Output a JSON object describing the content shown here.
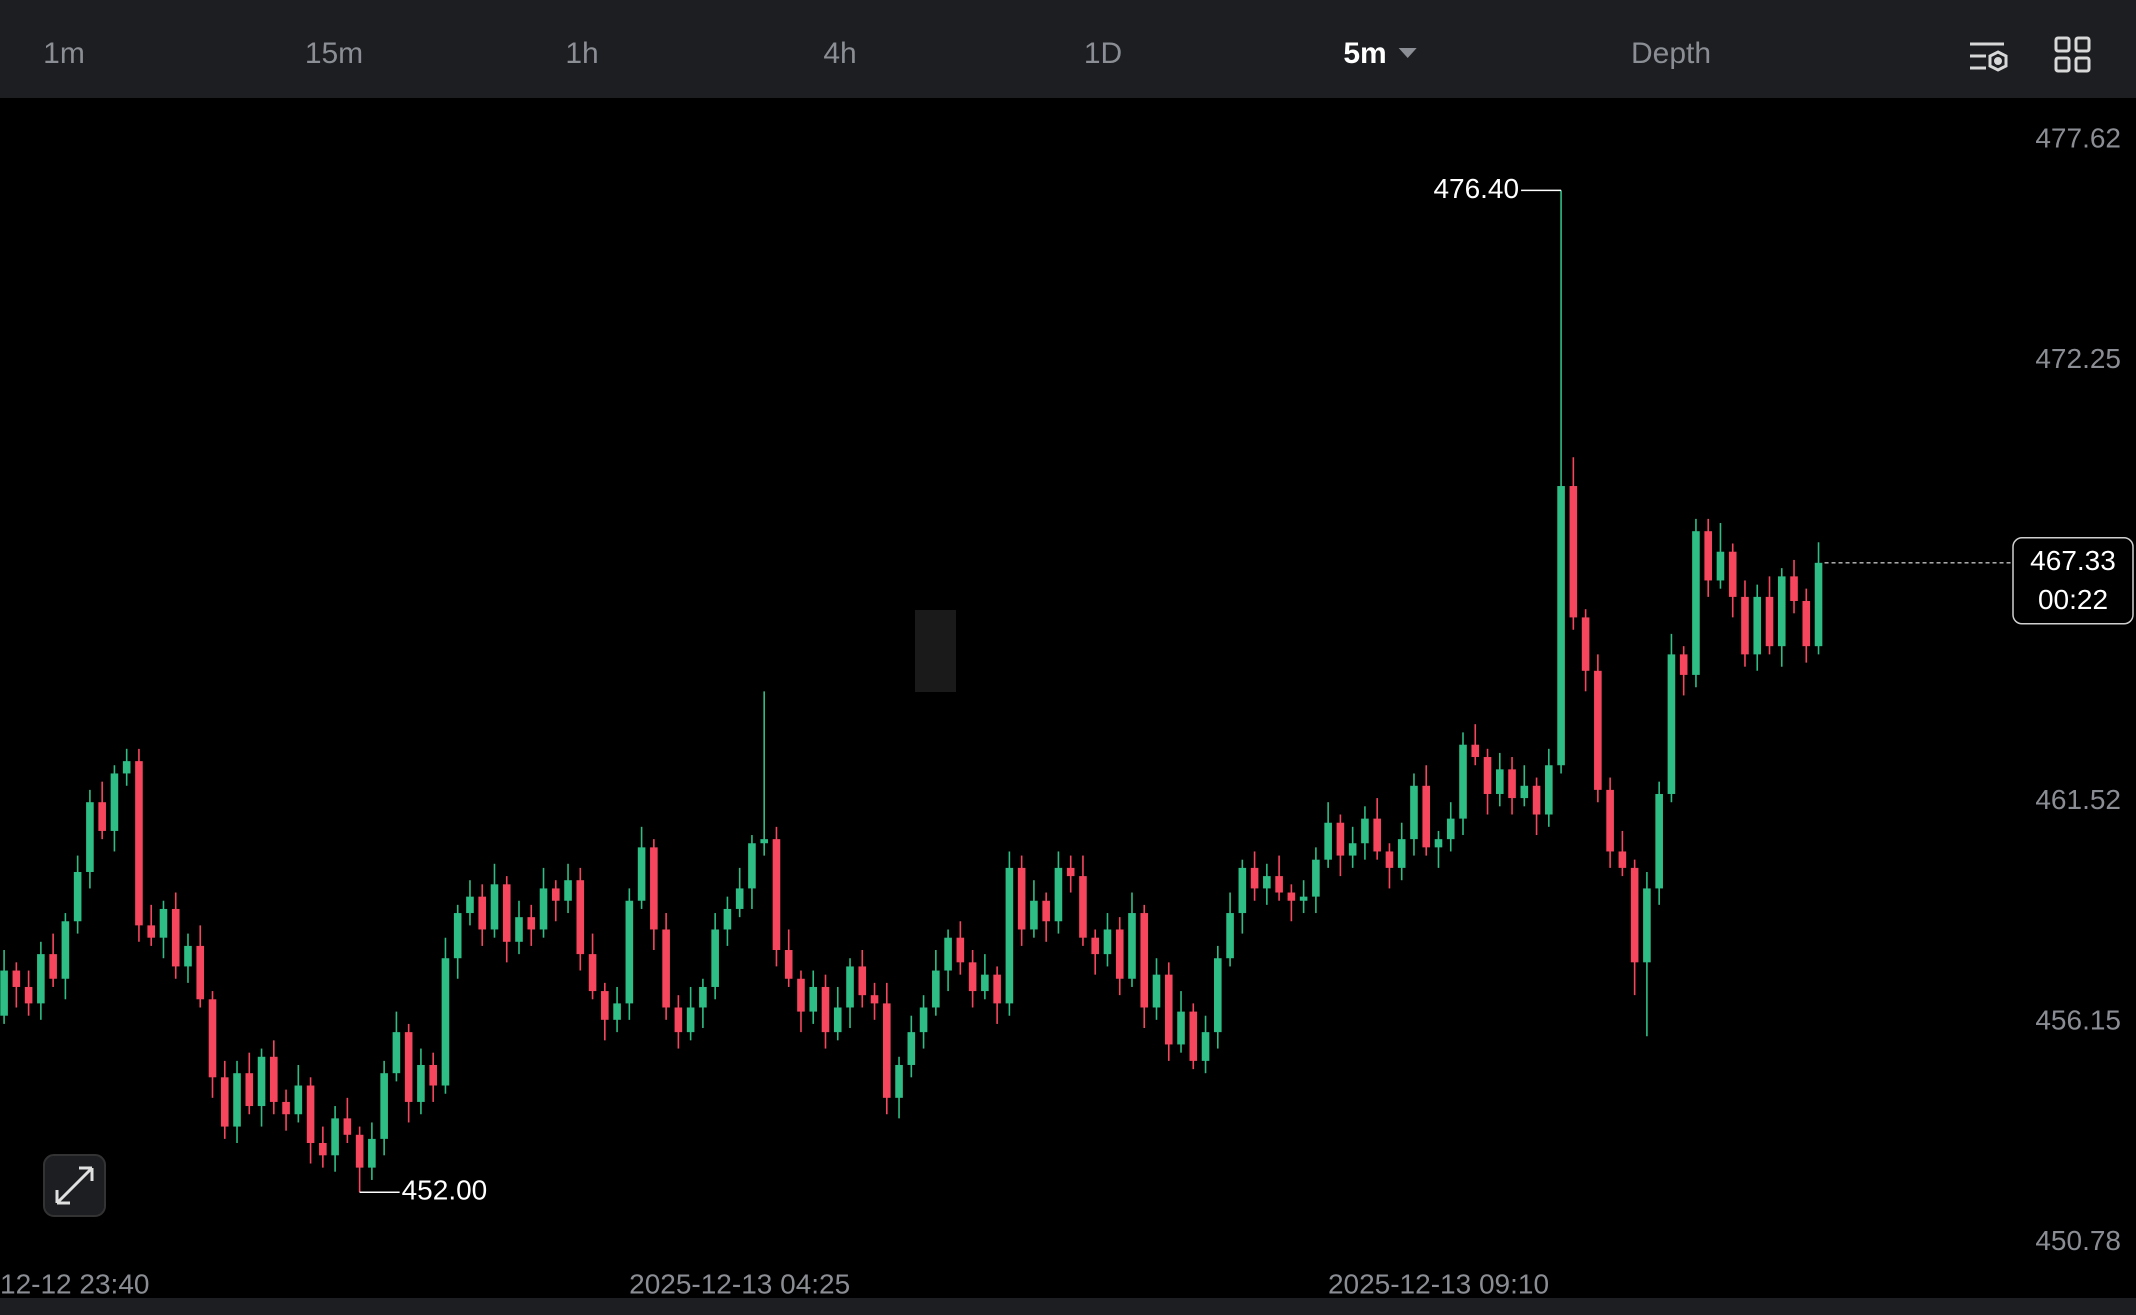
{
  "toolbar": {
    "tabs": [
      "1m",
      "15m",
      "1h",
      "4h",
      "1D",
      "5m",
      "Depth"
    ],
    "active": 5
  },
  "chart_data": {
    "type": "candlestick",
    "up_color": "#2ebd85",
    "down_color": "#f6465d",
    "ylim": [
      450.18,
      478.65
    ],
    "yticks": [
      477.62,
      472.25,
      461.52,
      456.15,
      450.78
    ],
    "categories": [
      null,
      null,
      null,
      null,
      "12-12 23:40",
      null,
      null,
      null,
      null,
      null,
      null,
      null,
      null,
      null,
      null,
      null,
      null,
      null,
      null,
      null,
      null,
      null,
      null,
      null,
      null,
      null,
      null,
      null,
      null,
      null,
      null,
      null,
      null,
      null,
      null,
      null,
      null,
      null,
      null,
      null,
      null,
      null,
      null,
      null,
      null,
      null,
      null,
      null,
      null,
      null,
      null,
      null,
      null,
      null,
      null,
      null,
      null,
      null,
      null,
      null,
      null,
      "2025-12-13 04:25",
      null,
      null,
      null,
      null,
      null,
      null,
      null,
      null,
      null,
      null,
      null,
      null,
      null,
      null,
      null,
      null,
      null,
      null,
      null,
      null,
      null,
      null,
      null,
      null,
      null,
      null,
      null,
      null,
      null,
      null,
      null,
      null,
      null,
      null,
      null,
      null,
      null,
      null,
      null,
      null,
      null,
      null,
      null,
      null,
      null,
      null,
      null,
      null,
      null,
      null,
      null,
      null,
      null,
      null,
      null,
      null,
      "2025-12-13 09:10",
      null,
      null,
      null,
      null,
      null,
      null,
      null,
      null,
      null,
      null,
      null,
      null,
      null,
      null,
      null,
      null,
      null,
      null,
      null,
      null,
      null,
      null,
      null,
      null,
      null,
      null,
      null,
      null,
      null,
      null,
      null
    ],
    "open": [
      455.6,
      456.3,
      457.4,
      457.0,
      456.6,
      457.8,
      457.2,
      458.6,
      459.8,
      461.5,
      460.8,
      462.2,
      462.5,
      458.5,
      458.2,
      458.9,
      457.5,
      458.0,
      456.7,
      454.8,
      453.6,
      454.9,
      454.1,
      455.3,
      454.2,
      453.9,
      454.6,
      453.2,
      452.9,
      453.8,
      453.4,
      452.6,
      453.3,
      454.9,
      455.9,
      454.2,
      455.1,
      454.6,
      457.7,
      458.8,
      459.2,
      458.4,
      459.5,
      458.1,
      458.7,
      458.4,
      459.4,
      459.1,
      459.6,
      457.8,
      456.9,
      456.2,
      456.6,
      459.1,
      460.4,
      458.4,
      456.5,
      455.9,
      456.5,
      457.0,
      458.4,
      458.9,
      459.4,
      460.5,
      460.6,
      457.9,
      457.2,
      456.4,
      457.0,
      455.9,
      456.5,
      457.5,
      456.8,
      456.6,
      454.3,
      455.1,
      455.9,
      456.5,
      457.4,
      458.2,
      457.6,
      456.9,
      457.3,
      456.6,
      459.9,
      458.4,
      459.1,
      458.6,
      459.9,
      459.7,
      458.2,
      457.8,
      458.4,
      457.2,
      458.8,
      456.5,
      457.3,
      455.6,
      456.4,
      455.2,
      455.9,
      457.7,
      458.8,
      459.9,
      459.4,
      459.7,
      459.3,
      459.1,
      459.2,
      460.1,
      461.0,
      460.2,
      460.5,
      461.1,
      460.3,
      459.9,
      460.6,
      461.9,
      460.4,
      460.6,
      461.1,
      462.9,
      462.6,
      461.7,
      462.3,
      461.6,
      461.9,
      461.2,
      462.4,
      469.2,
      466.0,
      464.7,
      461.8,
      460.3,
      459.9,
      457.6,
      459.4,
      461.7,
      465.1,
      464.6,
      468.1,
      466.9,
      467.6,
      466.5,
      465.1,
      466.5,
      465.3,
      467.0,
      466.4,
      465.3
    ],
    "high": [
      456.6,
      457.9,
      457.6,
      457.4,
      458.1,
      458.3,
      458.8,
      460.2,
      461.8,
      462.0,
      462.4,
      462.8,
      462.8,
      459.0,
      459.1,
      459.3,
      458.3,
      458.5,
      456.9,
      455.2,
      455.2,
      455.4,
      455.5,
      455.7,
      454.5,
      455.1,
      454.8,
      453.6,
      454.1,
      454.3,
      453.6,
      453.7,
      455.2,
      456.4,
      456.1,
      455.5,
      455.4,
      458.2,
      459.0,
      459.6,
      459.5,
      460.0,
      459.7,
      459.1,
      459.0,
      459.9,
      459.6,
      460.0,
      459.9,
      458.3,
      457.1,
      457.0,
      459.4,
      460.9,
      460.6,
      458.8,
      456.8,
      457.0,
      457.2,
      458.8,
      459.2,
      459.9,
      460.7,
      464.2,
      460.9,
      458.4,
      457.4,
      457.4,
      457.3,
      457.0,
      457.7,
      457.9,
      457.1,
      457.1,
      455.3,
      456.3,
      456.8,
      457.9,
      458.4,
      458.6,
      457.9,
      457.8,
      457.5,
      460.3,
      460.2,
      459.6,
      459.3,
      460.3,
      460.2,
      460.2,
      458.4,
      458.8,
      458.7,
      459.3,
      459.0,
      457.7,
      457.6,
      456.9,
      456.6,
      456.3,
      458.0,
      459.3,
      460.1,
      460.3,
      460.0,
      460.2,
      459.5,
      459.6,
      460.4,
      461.5,
      461.2,
      460.9,
      461.4,
      461.6,
      460.5,
      461.0,
      462.2,
      462.4,
      460.8,
      461.5,
      463.2,
      463.4,
      462.8,
      462.7,
      462.6,
      462.4,
      462.1,
      462.8,
      476.4,
      469.9,
      466.2,
      465.1,
      462.1,
      460.8,
      460.1,
      459.8,
      462.0,
      465.6,
      465.3,
      468.4,
      468.4,
      468.3,
      467.8,
      466.9,
      466.8,
      467.0,
      467.2,
      467.4,
      466.7,
      467.83
    ],
    "low": [
      455.2,
      456.1,
      456.5,
      456.3,
      456.2,
      457.0,
      456.7,
      458.3,
      459.4,
      460.6,
      460.3,
      461.9,
      458.1,
      458.0,
      457.7,
      457.2,
      457.1,
      456.5,
      454.3,
      453.3,
      453.2,
      453.9,
      453.6,
      453.9,
      453.5,
      453.7,
      452.7,
      452.6,
      452.5,
      453.2,
      452.0,
      452.3,
      452.9,
      454.7,
      453.7,
      453.9,
      454.2,
      454.4,
      457.2,
      458.5,
      458.0,
      458.2,
      457.6,
      457.8,
      458.0,
      458.2,
      458.6,
      458.8,
      457.4,
      456.7,
      455.7,
      455.9,
      456.2,
      458.9,
      457.9,
      456.2,
      455.5,
      455.7,
      456.0,
      456.7,
      458.0,
      458.7,
      458.9,
      460.2,
      457.5,
      457.0,
      455.9,
      456.1,
      455.5,
      455.7,
      456.0,
      456.5,
      456.2,
      453.9,
      453.8,
      454.8,
      455.5,
      456.3,
      456.9,
      457.3,
      456.5,
      456.7,
      456.1,
      456.3,
      458.0,
      458.2,
      458.1,
      458.3,
      459.3,
      458.0,
      457.3,
      457.5,
      456.8,
      457.0,
      456.0,
      456.2,
      455.2,
      455.4,
      455.0,
      454.9,
      455.5,
      457.5,
      458.3,
      459.1,
      459.0,
      459.1,
      458.6,
      458.8,
      458.8,
      459.9,
      459.7,
      459.9,
      460.1,
      460.1,
      459.4,
      459.6,
      460.2,
      460.2,
      459.9,
      460.3,
      460.7,
      462.4,
      461.2,
      461.4,
      461.2,
      461.4,
      460.7,
      460.9,
      462.2,
      465.7,
      464.2,
      461.5,
      459.9,
      459.7,
      456.8,
      455.8,
      459.0,
      461.5,
      464.1,
      464.3,
      466.5,
      466.7,
      466.0,
      464.8,
      464.7,
      465.1,
      464.8,
      466.1,
      464.9,
      465.1
    ],
    "close": [
      456.3,
      457.4,
      457.0,
      456.6,
      457.8,
      457.2,
      458.6,
      459.8,
      461.5,
      460.8,
      462.2,
      462.5,
      458.5,
      458.2,
      458.9,
      457.5,
      458.0,
      456.7,
      454.8,
      453.6,
      454.9,
      454.1,
      455.3,
      454.2,
      453.9,
      454.6,
      453.2,
      452.9,
      453.8,
      453.4,
      452.6,
      453.3,
      454.9,
      455.9,
      454.2,
      455.1,
      454.6,
      457.7,
      458.8,
      459.2,
      458.4,
      459.5,
      458.1,
      458.7,
      458.4,
      459.4,
      459.1,
      459.6,
      457.8,
      456.9,
      456.2,
      456.6,
      459.1,
      460.4,
      458.4,
      456.5,
      455.9,
      456.5,
      457.0,
      458.4,
      458.9,
      459.4,
      460.5,
      460.6,
      457.9,
      457.2,
      456.4,
      457.0,
      455.9,
      456.5,
      457.5,
      456.8,
      456.6,
      454.3,
      455.1,
      455.9,
      456.5,
      457.4,
      458.2,
      457.6,
      456.9,
      457.3,
      456.6,
      459.9,
      458.4,
      459.1,
      458.6,
      459.9,
      459.7,
      458.2,
      457.8,
      458.4,
      457.2,
      458.8,
      456.5,
      457.3,
      455.6,
      456.4,
      455.2,
      455.9,
      457.7,
      458.8,
      459.9,
      459.4,
      459.7,
      459.3,
      459.1,
      459.2,
      460.1,
      461.0,
      460.2,
      460.5,
      461.1,
      460.3,
      459.9,
      460.6,
      461.9,
      460.4,
      460.6,
      461.1,
      462.9,
      462.6,
      461.7,
      462.3,
      461.6,
      461.9,
      461.2,
      462.4,
      469.2,
      466.0,
      464.7,
      461.8,
      460.3,
      459.9,
      457.6,
      459.4,
      461.7,
      465.1,
      464.6,
      468.1,
      466.9,
      467.6,
      466.5,
      465.1,
      466.5,
      465.3,
      467.0,
      466.4,
      465.3,
      467.33
    ],
    "annotations": [
      {
        "value": 476.4,
        "label": "476.40"
      },
      {
        "value": 452.0,
        "label": "452.00"
      }
    ],
    "countdown": "00:22"
  }
}
